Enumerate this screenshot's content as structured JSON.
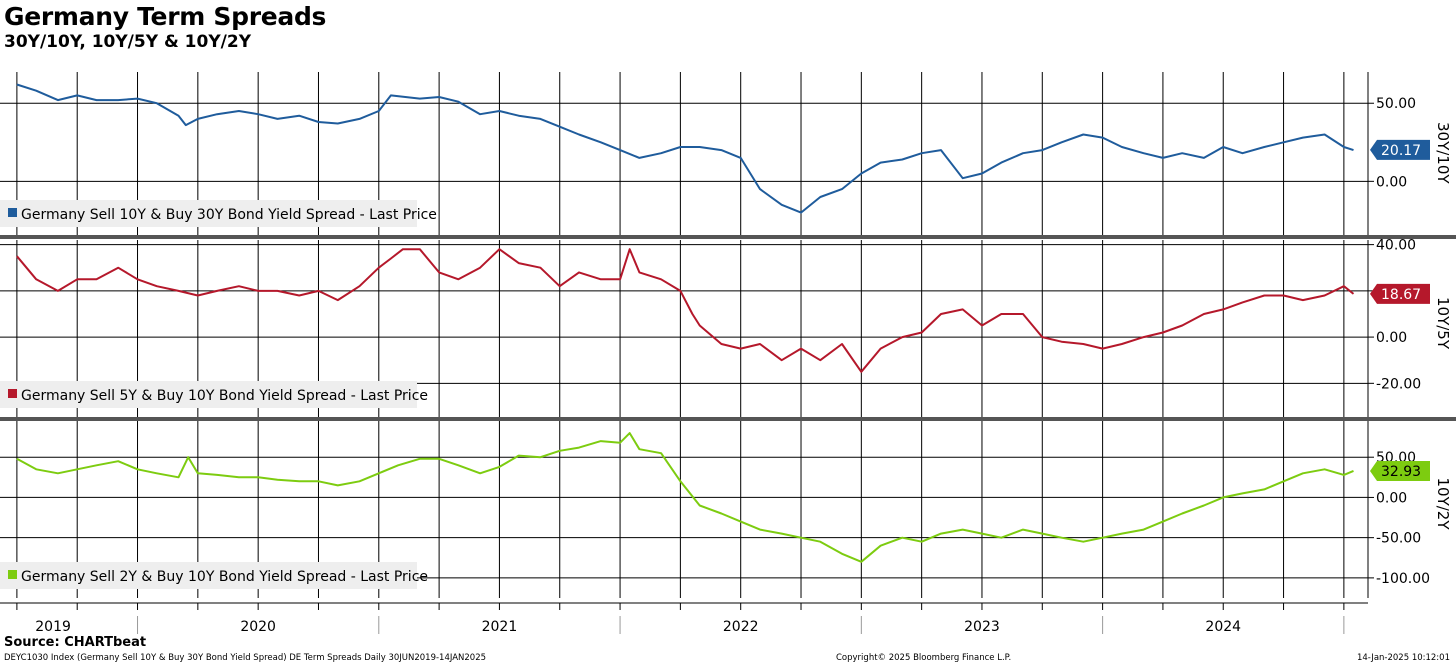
{
  "header": {
    "title": "Germany Term Spreads",
    "subtitle": "30Y/10Y, 10Y/5Y & 10Y/2Y",
    "source": "Source: CHARTbeat"
  },
  "footer": {
    "left": "DEYC1030 Index (Germany Sell 10Y & Buy 30Y Bond Yield Spread) DE Term Spreads  Daily 30JUN2019-14JAN2025",
    "middle": "Copyright© 2025 Bloomberg Finance L.P.",
    "right": "14-Jan-2025 10:12:01"
  },
  "chart_data": [
    {
      "type": "line",
      "axis_title": "30Y/10Y",
      "legend": "Germany Sell 10Y & Buy 30Y Bond Yield Spread - Last Price",
      "color": "#1f5c9c",
      "last_value": "20.17",
      "yticks": [
        "50.00",
        "0.00"
      ],
      "ylim": [
        -35,
        70
      ],
      "series": [
        {
          "name": "Germany Sell 10Y & Buy 30Y Bond Yield Spread - Last Price",
          "x": [
            2019.5,
            2019.58,
            2019.67,
            2019.75,
            2019.83,
            2019.92,
            2020.0,
            2020.08,
            2020.17,
            2020.2,
            2020.25,
            2020.33,
            2020.42,
            2020.5,
            2020.58,
            2020.67,
            2020.75,
            2020.83,
            2020.92,
            2021.0,
            2021.05,
            2021.17,
            2021.25,
            2021.33,
            2021.42,
            2021.5,
            2021.58,
            2021.67,
            2021.75,
            2021.83,
            2021.92,
            2022.0,
            2022.08,
            2022.17,
            2022.25,
            2022.33,
            2022.42,
            2022.5,
            2022.58,
            2022.67,
            2022.75,
            2022.83,
            2022.92,
            2023.0,
            2023.08,
            2023.17,
            2023.25,
            2023.33,
            2023.42,
            2023.5,
            2023.58,
            2023.67,
            2023.75,
            2023.83,
            2023.92,
            2024.0,
            2024.08,
            2024.17,
            2024.25,
            2024.33,
            2024.42,
            2024.5,
            2024.58,
            2024.67,
            2024.75,
            2024.83,
            2024.92,
            2025.0,
            2025.04
          ],
          "y": [
            62,
            58,
            52,
            55,
            52,
            52,
            53,
            50,
            42,
            36,
            40,
            43,
            45,
            43,
            40,
            42,
            38,
            37,
            40,
            45,
            55,
            53,
            54,
            51,
            43,
            45,
            42,
            40,
            35,
            30,
            25,
            20,
            15,
            18,
            22,
            22,
            20,
            15,
            -5,
            -15,
            -20,
            -10,
            -5,
            5,
            12,
            14,
            18,
            20,
            2,
            5,
            12,
            18,
            20,
            25,
            30,
            28,
            22,
            18,
            15,
            18,
            15,
            22,
            18,
            22,
            25,
            28,
            30,
            22,
            20
          ]
        }
      ]
    },
    {
      "type": "line",
      "axis_title": "10Y/5Y",
      "legend": "Germany Sell 5Y & Buy 10Y Bond Yield Spread - Last Price",
      "color": "#b5182b",
      "last_value": "18.67",
      "yticks": [
        "40.00",
        "20.00",
        "0.00",
        "-20.00"
      ],
      "ylim": [
        -35,
        42
      ],
      "series": [
        {
          "name": "Germany Sell 5Y & Buy 10Y Bond Yield Spread - Last Price",
          "x": [
            2019.5,
            2019.58,
            2019.67,
            2019.75,
            2019.83,
            2019.92,
            2020.0,
            2020.08,
            2020.17,
            2020.25,
            2020.33,
            2020.42,
            2020.5,
            2020.58,
            2020.67,
            2020.75,
            2020.83,
            2020.92,
            2021.0,
            2021.05,
            2021.1,
            2021.17,
            2021.25,
            2021.33,
            2021.42,
            2021.5,
            2021.58,
            2021.67,
            2021.75,
            2021.83,
            2021.92,
            2022.0,
            2022.04,
            2022.08,
            2022.17,
            2022.25,
            2022.3,
            2022.33,
            2022.42,
            2022.5,
            2022.58,
            2022.67,
            2022.75,
            2022.83,
            2022.92,
            2023.0,
            2023.08,
            2023.17,
            2023.25,
            2023.33,
            2023.42,
            2023.5,
            2023.58,
            2023.67,
            2023.75,
            2023.83,
            2023.92,
            2024.0,
            2024.08,
            2024.17,
            2024.25,
            2024.33,
            2024.42,
            2024.5,
            2024.58,
            2024.67,
            2024.75,
            2024.83,
            2024.92,
            2025.0,
            2025.04
          ],
          "y": [
            35,
            25,
            20,
            25,
            25,
            30,
            25,
            22,
            20,
            18,
            20,
            22,
            20,
            20,
            18,
            20,
            16,
            22,
            30,
            34,
            38,
            38,
            28,
            25,
            30,
            38,
            32,
            30,
            22,
            28,
            25,
            25,
            38,
            28,
            25,
            20,
            10,
            5,
            -3,
            -5,
            -3,
            -10,
            -5,
            -10,
            -3,
            -15,
            -5,
            0,
            2,
            10,
            12,
            5,
            10,
            10,
            0,
            -2,
            -3,
            -5,
            -3,
            0,
            2,
            5,
            10,
            12,
            15,
            18,
            18,
            16,
            18,
            22,
            18.67
          ]
        }
      ]
    },
    {
      "type": "line",
      "axis_title": "10Y/2Y",
      "legend": "Germany Sell 2Y & Buy 10Y Bond Yield Spread - Last Price",
      "color": "#7dcc10",
      "last_value": "32.93",
      "yticks": [
        "50.00",
        "0.00",
        "-50.00",
        "-100.00"
      ],
      "ylim": [
        -125,
        95
      ],
      "series": [
        {
          "name": "Germany Sell 2Y & Buy 10Y Bond Yield Spread - Last Price",
          "x": [
            2019.5,
            2019.58,
            2019.67,
            2019.75,
            2019.83,
            2019.92,
            2020.0,
            2020.08,
            2020.17,
            2020.21,
            2020.25,
            2020.33,
            2020.42,
            2020.5,
            2020.58,
            2020.67,
            2020.75,
            2020.83,
            2020.92,
            2021.0,
            2021.08,
            2021.17,
            2021.25,
            2021.33,
            2021.42,
            2021.5,
            2021.58,
            2021.67,
            2021.75,
            2021.83,
            2021.92,
            2022.0,
            2022.04,
            2022.08,
            2022.17,
            2022.25,
            2022.33,
            2022.42,
            2022.5,
            2022.58,
            2022.67,
            2022.75,
            2022.83,
            2022.92,
            2023.0,
            2023.08,
            2023.17,
            2023.25,
            2023.33,
            2023.42,
            2023.5,
            2023.58,
            2023.67,
            2023.75,
            2023.83,
            2023.92,
            2024.0,
            2024.08,
            2024.17,
            2024.25,
            2024.33,
            2024.42,
            2024.5,
            2024.58,
            2024.67,
            2024.75,
            2024.83,
            2024.92,
            2025.0,
            2025.04
          ],
          "y": [
            48,
            35,
            30,
            35,
            40,
            45,
            35,
            30,
            25,
            50,
            30,
            28,
            25,
            25,
            22,
            20,
            20,
            15,
            20,
            30,
            40,
            48,
            48,
            40,
            30,
            38,
            52,
            50,
            58,
            62,
            70,
            68,
            80,
            60,
            55,
            20,
            -10,
            -20,
            -30,
            -40,
            -45,
            -50,
            -55,
            -70,
            -80,
            -60,
            -50,
            -55,
            -45,
            -40,
            -45,
            -50,
            -40,
            -45,
            -50,
            -55,
            -50,
            -45,
            -40,
            -30,
            -20,
            -10,
            0,
            5,
            10,
            20,
            30,
            35,
            28,
            32.93
          ]
        }
      ]
    }
  ],
  "x_axis": {
    "labels": [
      "2019",
      "2020",
      "2021",
      "2022",
      "2023",
      "2024"
    ]
  }
}
